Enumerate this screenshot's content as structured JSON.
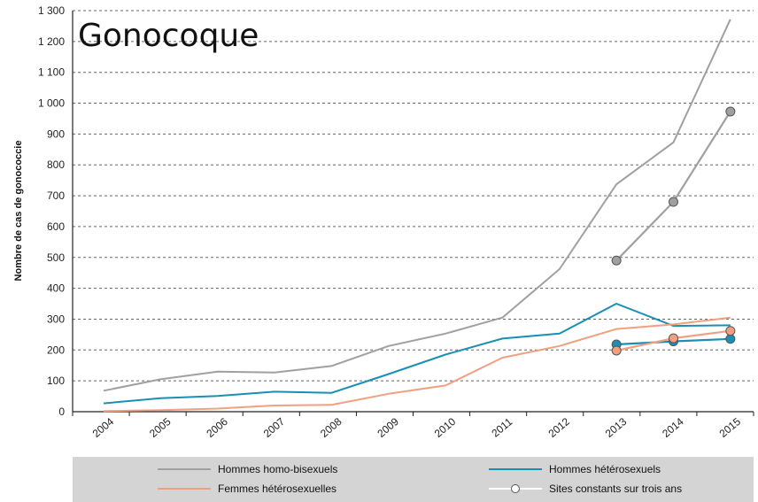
{
  "chart_data": {
    "type": "line",
    "title": "Gonocoque",
    "ylabel": "Nombre de cas de gonococcie",
    "xlabel": "",
    "categories": [
      "2004",
      "2005",
      "2006",
      "2007",
      "2008",
      "2009",
      "2010",
      "2011",
      "2012",
      "2013",
      "2014",
      "2015"
    ],
    "ylim": [
      0,
      1300
    ],
    "yticks": [
      0,
      100,
      200,
      300,
      400,
      500,
      600,
      700,
      800,
      900,
      1000,
      1100,
      1200,
      1300
    ],
    "ytick_labels": [
      "0",
      "100",
      "200",
      "300",
      "400",
      "500",
      "600",
      "700",
      "800",
      "900",
      "1 000",
      "1 100",
      "1 200",
      "1 300"
    ],
    "grid": "horizontal dashed",
    "legend_position": "bottom",
    "series": [
      {
        "name": "Hommes homo-bisexuels",
        "color": "#a0a0a0",
        "style": "line",
        "x": [
          "2004",
          "2005",
          "2006",
          "2007",
          "2008",
          "2009",
          "2010",
          "2011",
          "2012",
          "2013",
          "2014",
          "2015"
        ],
        "values": [
          68,
          105,
          130,
          127,
          148,
          213,
          253,
          305,
          462,
          737,
          873,
          1272
        ]
      },
      {
        "name": "Hommes hétérosexuels",
        "color": "#1a8fb5",
        "style": "line",
        "x": [
          "2004",
          "2005",
          "2006",
          "2007",
          "2008",
          "2009",
          "2010",
          "2011",
          "2012",
          "2013",
          "2014",
          "2015"
        ],
        "values": [
          27,
          44,
          51,
          65,
          61,
          122,
          185,
          237,
          253,
          350,
          278,
          280
        ]
      },
      {
        "name": "Femmes hétérosexuelles",
        "color": "#f0a080",
        "style": "line",
        "x": [
          "2004",
          "2005",
          "2006",
          "2007",
          "2008",
          "2009",
          "2010",
          "2011",
          "2012",
          "2013",
          "2014",
          "2015"
        ],
        "values": [
          2,
          5,
          10,
          20,
          22,
          58,
          85,
          175,
          213,
          268,
          283,
          305
        ]
      },
      {
        "color": "#a0a0a0",
        "style": "markers",
        "x": [
          "2013",
          "2014",
          "2015"
        ],
        "values": [
          490,
          680,
          973
        ]
      },
      {
        "color": "#1a8fb5",
        "style": "markers",
        "x": [
          "2013",
          "2014",
          "2015"
        ],
        "values": [
          218,
          228,
          236
        ]
      },
      {
        "color": "#f0a080",
        "style": "markers",
        "x": [
          "2013",
          "2014",
          "2015"
        ],
        "values": [
          198,
          238,
          262
        ]
      }
    ],
    "legend": [
      {
        "label": "Hommes homo-bisexuels",
        "color": "#a0a0a0",
        "symbol": "line"
      },
      {
        "label": "Hommes hétérosexuels",
        "color": "#1a8fb5",
        "symbol": "line"
      },
      {
        "label": "Femmes hétérosexuelles",
        "color": "#f0a080",
        "symbol": "line"
      },
      {
        "label": "Sites constants sur trois ans",
        "color": "#ffffff",
        "symbol": "line-marker"
      }
    ]
  }
}
